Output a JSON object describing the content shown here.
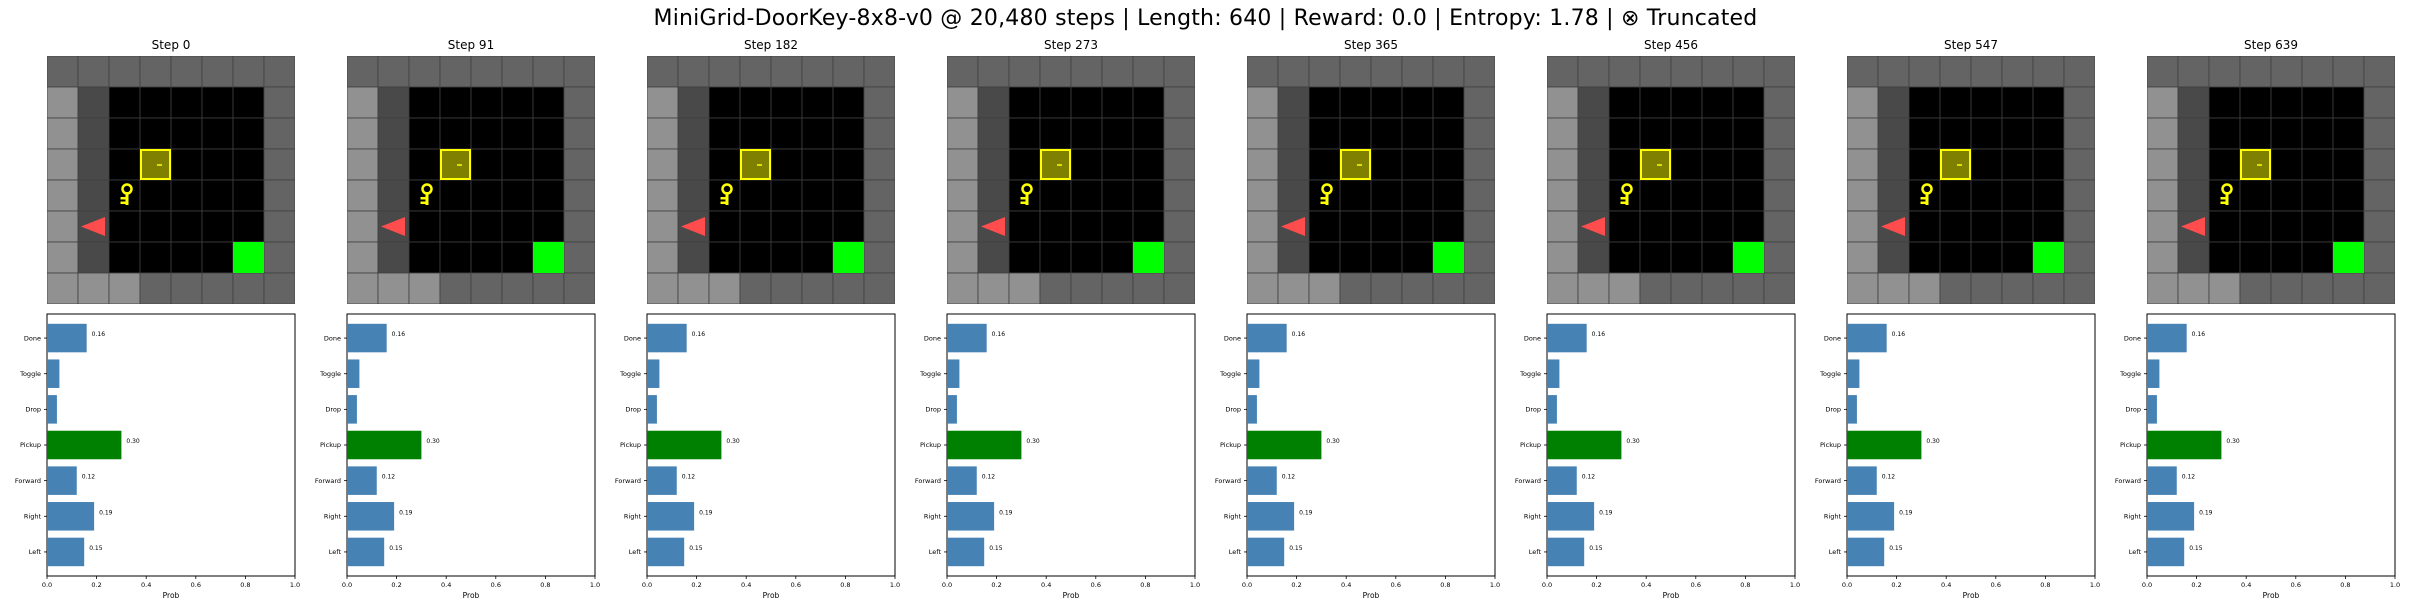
{
  "title": "MiniGrid-DoorKey-8x8-v0 @ 20,480 steps | Length: 640 | Reward: 0.0 | Entropy: 1.78 | ⊗ Truncated",
  "colors": {
    "bar_default": "#4682b4",
    "bar_selected": "#008000",
    "wall": "#646464",
    "visible_wall": "#919191",
    "floor": "#000000",
    "visible_floor": "#494949",
    "gridline": "#404040",
    "door": "#7f7f00",
    "door_edge": "#ffff00",
    "key": "#ffff00",
    "goal": "#00ff00",
    "agent": "#ff4d4d"
  },
  "grid_scene": {
    "size": 8,
    "wall_column": 3,
    "door": {
      "col": 3,
      "row": 3,
      "state": "locked"
    },
    "key": {
      "col": 2,
      "row": 4
    },
    "goal": {
      "col": 6,
      "row": 6
    },
    "agent": {
      "col": 1,
      "row": 5,
      "facing": "left"
    }
  },
  "chart_data": [
    {
      "type": "bar",
      "orientation": "horizontal",
      "title": "Step 0",
      "categories": [
        "Left",
        "Right",
        "Forward",
        "Pickup",
        "Drop",
        "Toggle",
        "Done"
      ],
      "values": [
        0.15,
        0.19,
        0.12,
        0.3,
        0.04,
        0.05,
        0.16
      ],
      "data_labels": [
        "0.15",
        "0.19",
        "0.12",
        "0.30",
        "",
        "",
        "0.16"
      ],
      "selected": "Pickup",
      "xlabel": "Prob",
      "xlim": [
        0,
        1.0
      ],
      "xticks": [
        "0.0",
        "0.2",
        "0.4",
        "0.6",
        "0.8",
        "1.0"
      ]
    },
    {
      "type": "bar",
      "orientation": "horizontal",
      "title": "Step 91",
      "categories": [
        "Left",
        "Right",
        "Forward",
        "Pickup",
        "Drop",
        "Toggle",
        "Done"
      ],
      "values": [
        0.15,
        0.19,
        0.12,
        0.3,
        0.04,
        0.05,
        0.16
      ],
      "data_labels": [
        "0.15",
        "0.19",
        "0.12",
        "0.30",
        "",
        "",
        "0.16"
      ],
      "selected": "Pickup",
      "xlabel": "Prob",
      "xlim": [
        0,
        1.0
      ],
      "xticks": [
        "0.0",
        "0.2",
        "0.4",
        "0.6",
        "0.8",
        "1.0"
      ]
    },
    {
      "type": "bar",
      "orientation": "horizontal",
      "title": "Step 182",
      "categories": [
        "Left",
        "Right",
        "Forward",
        "Pickup",
        "Drop",
        "Toggle",
        "Done"
      ],
      "values": [
        0.15,
        0.19,
        0.12,
        0.3,
        0.04,
        0.05,
        0.16
      ],
      "data_labels": [
        "0.15",
        "0.19",
        "0.12",
        "0.30",
        "",
        "",
        "0.16"
      ],
      "selected": "Pickup",
      "xlabel": "Prob",
      "xlim": [
        0,
        1.0
      ],
      "xticks": [
        "0.0",
        "0.2",
        "0.4",
        "0.6",
        "0.8",
        "1.0"
      ]
    },
    {
      "type": "bar",
      "orientation": "horizontal",
      "title": "Step 273",
      "categories": [
        "Left",
        "Right",
        "Forward",
        "Pickup",
        "Drop",
        "Toggle",
        "Done"
      ],
      "values": [
        0.15,
        0.19,
        0.12,
        0.3,
        0.04,
        0.05,
        0.16
      ],
      "data_labels": [
        "0.15",
        "0.19",
        "0.12",
        "0.30",
        "",
        "",
        "0.16"
      ],
      "selected": "Pickup",
      "xlabel": "Prob",
      "xlim": [
        0,
        1.0
      ],
      "xticks": [
        "0.0",
        "0.2",
        "0.4",
        "0.6",
        "0.8",
        "1.0"
      ]
    },
    {
      "type": "bar",
      "orientation": "horizontal",
      "title": "Step 365",
      "categories": [
        "Left",
        "Right",
        "Forward",
        "Pickup",
        "Drop",
        "Toggle",
        "Done"
      ],
      "values": [
        0.15,
        0.19,
        0.12,
        0.3,
        0.04,
        0.05,
        0.16
      ],
      "data_labels": [
        "0.15",
        "0.19",
        "0.12",
        "0.30",
        "",
        "",
        "0.16"
      ],
      "selected": "Pickup",
      "xlabel": "Prob",
      "xlim": [
        0,
        1.0
      ],
      "xticks": [
        "0.0",
        "0.2",
        "0.4",
        "0.6",
        "0.8",
        "1.0"
      ]
    },
    {
      "type": "bar",
      "orientation": "horizontal",
      "title": "Step 456",
      "categories": [
        "Left",
        "Right",
        "Forward",
        "Pickup",
        "Drop",
        "Toggle",
        "Done"
      ],
      "values": [
        0.15,
        0.19,
        0.12,
        0.3,
        0.04,
        0.05,
        0.16
      ],
      "data_labels": [
        "0.15",
        "0.19",
        "0.12",
        "0.30",
        "",
        "",
        "0.16"
      ],
      "selected": "Pickup",
      "xlabel": "Prob",
      "xlim": [
        0,
        1.0
      ],
      "xticks": [
        "0.0",
        "0.2",
        "0.4",
        "0.6",
        "0.8",
        "1.0"
      ]
    },
    {
      "type": "bar",
      "orientation": "horizontal",
      "title": "Step 547",
      "categories": [
        "Left",
        "Right",
        "Forward",
        "Pickup",
        "Drop",
        "Toggle",
        "Done"
      ],
      "values": [
        0.15,
        0.19,
        0.12,
        0.3,
        0.04,
        0.05,
        0.16
      ],
      "data_labels": [
        "0.15",
        "0.19",
        "0.12",
        "0.30",
        "",
        "",
        "0.16"
      ],
      "selected": "Pickup",
      "xlabel": "Prob",
      "xlim": [
        0,
        1.0
      ],
      "xticks": [
        "0.0",
        "0.2",
        "0.4",
        "0.6",
        "0.8",
        "1.0"
      ]
    },
    {
      "type": "bar",
      "orientation": "horizontal",
      "title": "Step 639",
      "categories": [
        "Left",
        "Right",
        "Forward",
        "Pickup",
        "Drop",
        "Toggle",
        "Done"
      ],
      "values": [
        0.15,
        0.19,
        0.12,
        0.3,
        0.04,
        0.05,
        0.16
      ],
      "data_labels": [
        "0.15",
        "0.19",
        "0.12",
        "0.30",
        "",
        "",
        "0.16"
      ],
      "selected": "Pickup",
      "xlabel": "Prob",
      "xlim": [
        0,
        1.0
      ],
      "xticks": [
        "0.0",
        "0.2",
        "0.4",
        "0.6",
        "0.8",
        "1.0"
      ]
    }
  ]
}
